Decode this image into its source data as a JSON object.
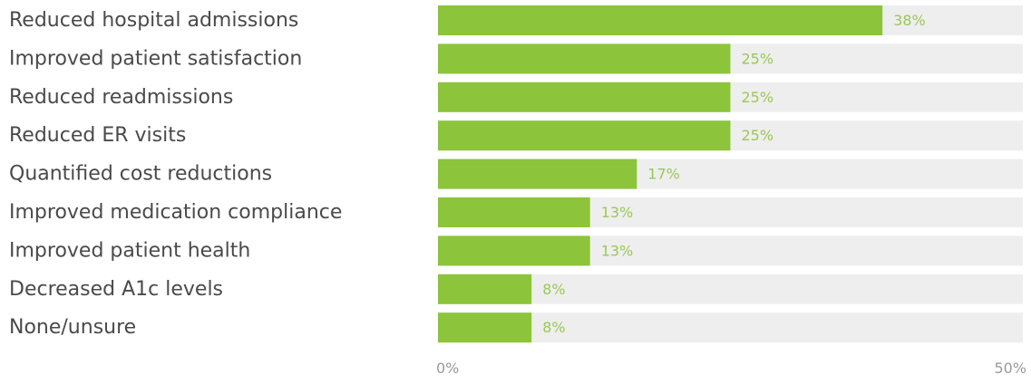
{
  "chart_data": {
    "type": "bar",
    "orientation": "horizontal",
    "categories": [
      "Reduced hospital admissions",
      "Improved patient satisfaction",
      "Reduced readmissions",
      "Reduced ER visits",
      "Quantified cost reductions",
      "Improved medication compliance",
      "Improved patient health",
      "Decreased A1c levels",
      "None/unsure"
    ],
    "values": [
      38,
      25,
      25,
      25,
      17,
      13,
      13,
      8,
      8
    ],
    "data_labels": [
      "38%",
      "25%",
      "25%",
      "25%",
      "17%",
      "13%",
      "13%",
      "8%",
      "8%"
    ],
    "xlim": [
      0,
      50
    ],
    "x_ticks": [
      0,
      50
    ],
    "x_tick_labels": [
      "0%",
      "50%"
    ],
    "title": "",
    "xlabel": "",
    "ylabel": "",
    "grid": false,
    "legend": "none",
    "colors": {
      "bar": "#8cc43b",
      "track": "#eeeeee",
      "value_label": "#9cc757",
      "category_label": "#4a4a4a",
      "tick_label": "#9a9a9a"
    }
  }
}
